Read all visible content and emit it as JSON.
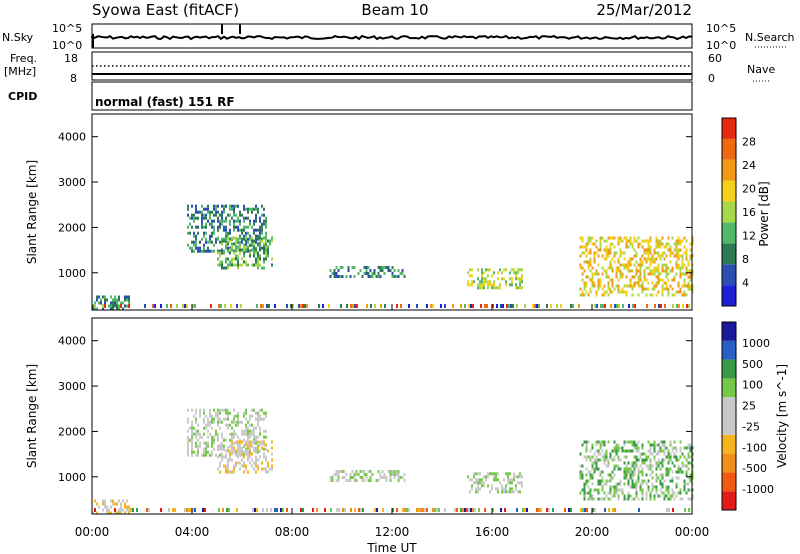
{
  "header": {
    "station": "Syowa East (fitACF)",
    "beam": "Beam 10",
    "date": "25/Mar/2012"
  },
  "top_panels": {
    "nsky_label": "N.Sky",
    "nsearch_label": "N.Search",
    "noise_ticks": [
      "10^5",
      "10^0"
    ],
    "freq_label": "Freq.",
    "freq_unit": "[MHz]",
    "freq_ticks": [
      "18",
      "8"
    ],
    "nave_label": "Nave",
    "nave_ticks": [
      "60",
      "0"
    ],
    "cpid_label": "CPID",
    "cpid_value": "normal (fast) 151 RF"
  },
  "colors": {
    "power_scale": [
      "#1f1fd6",
      "#2a4fae",
      "#2e7a54",
      "#53b86a",
      "#a8d84a",
      "#f2d21a",
      "#f09a18",
      "#ee6a10",
      "#e52a10"
    ],
    "velocity_scale": [
      "#e51b1b",
      "#f25a10",
      "#f08f1a",
      "#f5b51e",
      "#c9c9c9",
      "#c9c9c9",
      "#76c848",
      "#3b9a48",
      "#2a5ec4",
      "#1a1a9a"
    ]
  },
  "chart_data": [
    {
      "type": "heatmap",
      "title": "Power",
      "ylabel": "Slant Range [km]",
      "xlabel": "Time UT",
      "xticks": [
        "00:00",
        "04:00",
        "08:00",
        "12:00",
        "16:00",
        "20:00",
        "00:00"
      ],
      "yticks": [
        "1000",
        "2000",
        "3000",
        "4000"
      ],
      "ylim": [
        180,
        4500
      ],
      "xlim_hours": [
        0,
        24
      ],
      "colorbar_label": "Power [dB]",
      "colorbar_ticks": [
        "4",
        "8",
        "12",
        "16",
        "20",
        "24",
        "28"
      ],
      "clim": [
        0,
        30
      ],
      "echo_regions": [
        {
          "t0": 3.8,
          "t1": 7.0,
          "r0": 1500,
          "r1": 2500,
          "value": 8
        },
        {
          "t0": 5.0,
          "t1": 7.2,
          "r0": 1100,
          "r1": 1800,
          "value": 10
        },
        {
          "t0": 9.5,
          "t1": 12.5,
          "r0": 900,
          "r1": 1150,
          "value": 6
        },
        {
          "t0": 15.0,
          "t1": 17.2,
          "r0": 700,
          "r1": 1100,
          "value": 14
        },
        {
          "t0": 19.5,
          "t1": 24.0,
          "r0": 500,
          "r1": 1800,
          "value": 20
        },
        {
          "t0": 0.0,
          "t1": 1.5,
          "r0": 200,
          "r1": 500,
          "value": 6
        }
      ]
    },
    {
      "type": "heatmap",
      "title": "Velocity",
      "ylabel": "Slant Range [km]",
      "xlabel": "Time UT",
      "xticks": [
        "00:00",
        "04:00",
        "08:00",
        "12:00",
        "16:00",
        "20:00",
        "00:00"
      ],
      "yticks": [
        "1000",
        "2000",
        "3000",
        "4000"
      ],
      "ylim": [
        180,
        4500
      ],
      "xlim_hours": [
        0,
        24
      ],
      "colorbar_label": "Velocity [m s^-1]",
      "colorbar_ticks": [
        "1000",
        "500",
        "100",
        "25",
        "-25",
        "-100",
        "-500",
        "-1000"
      ],
      "clim": [
        -1200,
        1200
      ],
      "echo_regions": [
        {
          "t0": 3.8,
          "t1": 7.0,
          "r0": 1500,
          "r1": 2500,
          "value": 0
        },
        {
          "t0": 5.0,
          "t1": 7.2,
          "r0": 1100,
          "r1": 1800,
          "value": -150
        },
        {
          "t0": 9.5,
          "t1": 12.5,
          "r0": 900,
          "r1": 1150,
          "value": 0
        },
        {
          "t0": 15.0,
          "t1": 17.2,
          "r0": 700,
          "r1": 1100,
          "value": 100
        },
        {
          "t0": 19.5,
          "t1": 24.0,
          "r0": 500,
          "r1": 1800,
          "value": 300
        },
        {
          "t0": 0.0,
          "t1": 1.5,
          "r0": 200,
          "r1": 500,
          "value": -200
        }
      ]
    }
  ]
}
